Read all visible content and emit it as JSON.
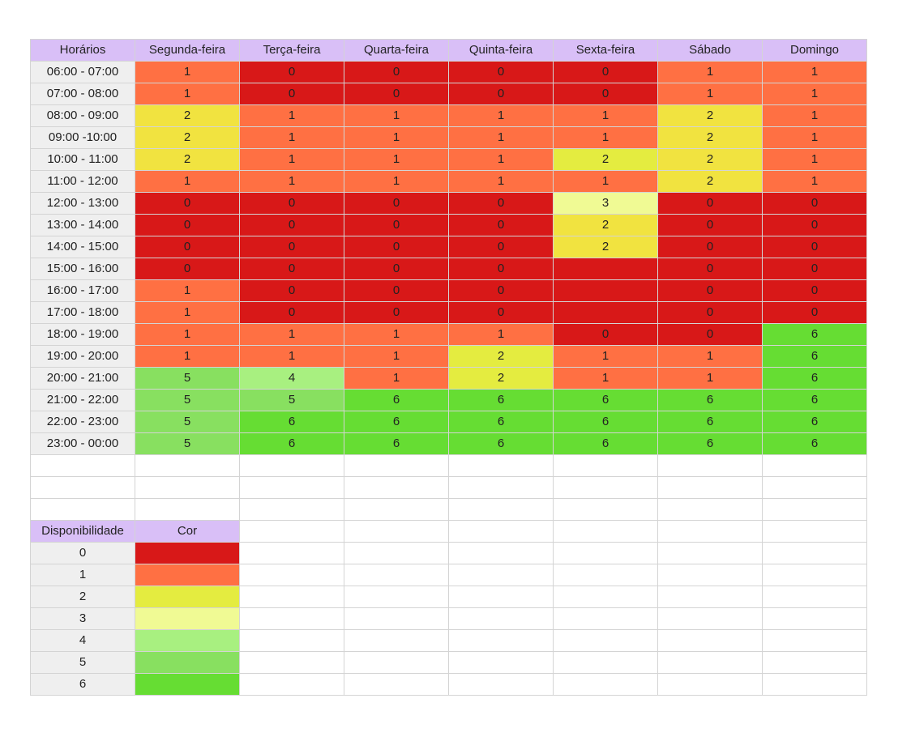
{
  "header": {
    "corner": "Horários",
    "days": [
      "Segunda-feira",
      "Terça-feira",
      "Quarta-feira",
      "Quinta-feira",
      "Sexta-feira",
      "Sábado",
      "Domingo"
    ]
  },
  "schedule": [
    {
      "time": "06:00 - 07:00",
      "values": [
        "1",
        "0",
        "0",
        "0",
        "0",
        "1",
        "1"
      ]
    },
    {
      "time": "07:00 - 08:00",
      "values": [
        "1",
        "0",
        "0",
        "0",
        "0",
        "1",
        "1"
      ]
    },
    {
      "time": "08:00 - 09:00",
      "values": [
        "2",
        "1",
        "1",
        "1",
        "1",
        "2",
        "1"
      ]
    },
    {
      "time": "09:00 -10:00",
      "values": [
        "2",
        "1",
        "1",
        "1",
        "1",
        "2",
        "1"
      ]
    },
    {
      "time": "10:00 - 11:00",
      "values": [
        "2",
        "1",
        "1",
        "1",
        "2",
        "2",
        "1"
      ]
    },
    {
      "time": "11:00 - 12:00",
      "values": [
        "1",
        "1",
        "1",
        "1",
        "1",
        "2",
        "1"
      ]
    },
    {
      "time": "12:00 - 13:00",
      "values": [
        "0",
        "0",
        "0",
        "0",
        "3",
        "0",
        "0"
      ]
    },
    {
      "time": "13:00 - 14:00",
      "values": [
        "0",
        "0",
        "0",
        "0",
        "2",
        "0",
        "0"
      ]
    },
    {
      "time": "14:00 - 15:00",
      "values": [
        "0",
        "0",
        "0",
        "0",
        "2",
        "0",
        "0"
      ]
    },
    {
      "time": "15:00 - 16:00",
      "values": [
        "0",
        "0",
        "0",
        "0",
        "",
        "0",
        "0"
      ]
    },
    {
      "time": "16:00 - 17:00",
      "values": [
        "1",
        "0",
        "0",
        "0",
        "",
        "0",
        "0"
      ]
    },
    {
      "time": "17:00 - 18:00",
      "values": [
        "1",
        "0",
        "0",
        "0",
        "",
        "0",
        "0"
      ]
    },
    {
      "time": "18:00 - 19:00",
      "values": [
        "1",
        "1",
        "1",
        "1",
        "0",
        "0",
        "6"
      ]
    },
    {
      "time": "19:00 - 20:00",
      "values": [
        "1",
        "1",
        "1",
        "2",
        "1",
        "1",
        "6"
      ]
    },
    {
      "time": "20:00 - 21:00",
      "values": [
        "5",
        "4",
        "1",
        "2",
        "1",
        "1",
        "6"
      ]
    },
    {
      "time": "21:00 - 22:00",
      "values": [
        "5",
        "5",
        "6",
        "6",
        "6",
        "6",
        "6"
      ]
    },
    {
      "time": "22:00 - 23:00",
      "values": [
        "5",
        "6",
        "6",
        "6",
        "6",
        "6",
        "6"
      ]
    },
    {
      "time": "23:00 - 00:00",
      "values": [
        "5",
        "6",
        "6",
        "6",
        "6",
        "6",
        "6"
      ]
    }
  ],
  "cell_colors": [
    [
      "#ff7043",
      "#d81818",
      "#d81818",
      "#d81818",
      "#d81818",
      "#ff7043",
      "#ff7043"
    ],
    [
      "#ff7043",
      "#d81818",
      "#d81818",
      "#d81818",
      "#d81818",
      "#ff7043",
      "#ff7043"
    ],
    [
      "#f1e340",
      "#ff7043",
      "#ff7043",
      "#ff7043",
      "#ff7043",
      "#f1e340",
      "#ff7043"
    ],
    [
      "#f1e340",
      "#ff7043",
      "#ff7043",
      "#ff7043",
      "#ff7043",
      "#f1e340",
      "#ff7043"
    ],
    [
      "#f1e340",
      "#ff7043",
      "#ff7043",
      "#ff7043",
      "#e4ec40",
      "#f1e340",
      "#ff7043"
    ],
    [
      "#ff7043",
      "#ff7043",
      "#ff7043",
      "#ff7043",
      "#ff7043",
      "#f1e340",
      "#ff7043"
    ],
    [
      "#d81818",
      "#d81818",
      "#d81818",
      "#d81818",
      "#f0fa94",
      "#d81818",
      "#d81818"
    ],
    [
      "#d81818",
      "#d81818",
      "#d81818",
      "#d81818",
      "#f1e340",
      "#d81818",
      "#d81818"
    ],
    [
      "#d81818",
      "#d81818",
      "#d81818",
      "#d81818",
      "#f1e340",
      "#d81818",
      "#d81818"
    ],
    [
      "#d81818",
      "#d81818",
      "#d81818",
      "#d81818",
      "#d81818",
      "#d81818",
      "#d81818"
    ],
    [
      "#ff7043",
      "#d81818",
      "#d81818",
      "#d81818",
      "#d81818",
      "#d81818",
      "#d81818"
    ],
    [
      "#ff7043",
      "#d81818",
      "#d81818",
      "#d81818",
      "#d81818",
      "#d81818",
      "#d81818"
    ],
    [
      "#ff7043",
      "#ff7043",
      "#ff7043",
      "#ff7043",
      "#d81818",
      "#d81818",
      "#66dd33"
    ],
    [
      "#ff7043",
      "#ff7043",
      "#ff7043",
      "#e4ec40",
      "#ff7043",
      "#ff7043",
      "#66dd33"
    ],
    [
      "#88e060",
      "#a8f080",
      "#ff7043",
      "#e4ec40",
      "#ff7043",
      "#ff7043",
      "#66dd33"
    ],
    [
      "#88e060",
      "#88e060",
      "#66dd33",
      "#66dd33",
      "#66dd33",
      "#66dd33",
      "#66dd33"
    ],
    [
      "#88e060",
      "#66dd33",
      "#66dd33",
      "#66dd33",
      "#66dd33",
      "#66dd33",
      "#66dd33"
    ],
    [
      "#88e060",
      "#66dd33",
      "#66dd33",
      "#66dd33",
      "#66dd33",
      "#66dd33",
      "#66dd33"
    ]
  ],
  "legend": {
    "header_label": "Disponibilidade",
    "header_color": "Cor",
    "rows": [
      {
        "level": "0",
        "color": "#d81818"
      },
      {
        "level": "1",
        "color": "#ff7043"
      },
      {
        "level": "2",
        "color": "#e4ec40"
      },
      {
        "level": "3",
        "color": "#f0fa94"
      },
      {
        "level": "4",
        "color": "#a8f080"
      },
      {
        "level": "5",
        "color": "#88e060"
      },
      {
        "level": "6",
        "color": "#66dd33"
      }
    ]
  },
  "colors": {
    "header_bg": "#d9bff7",
    "row_label_bg": "#efefef",
    "grid_line": "#d4d4d4"
  }
}
